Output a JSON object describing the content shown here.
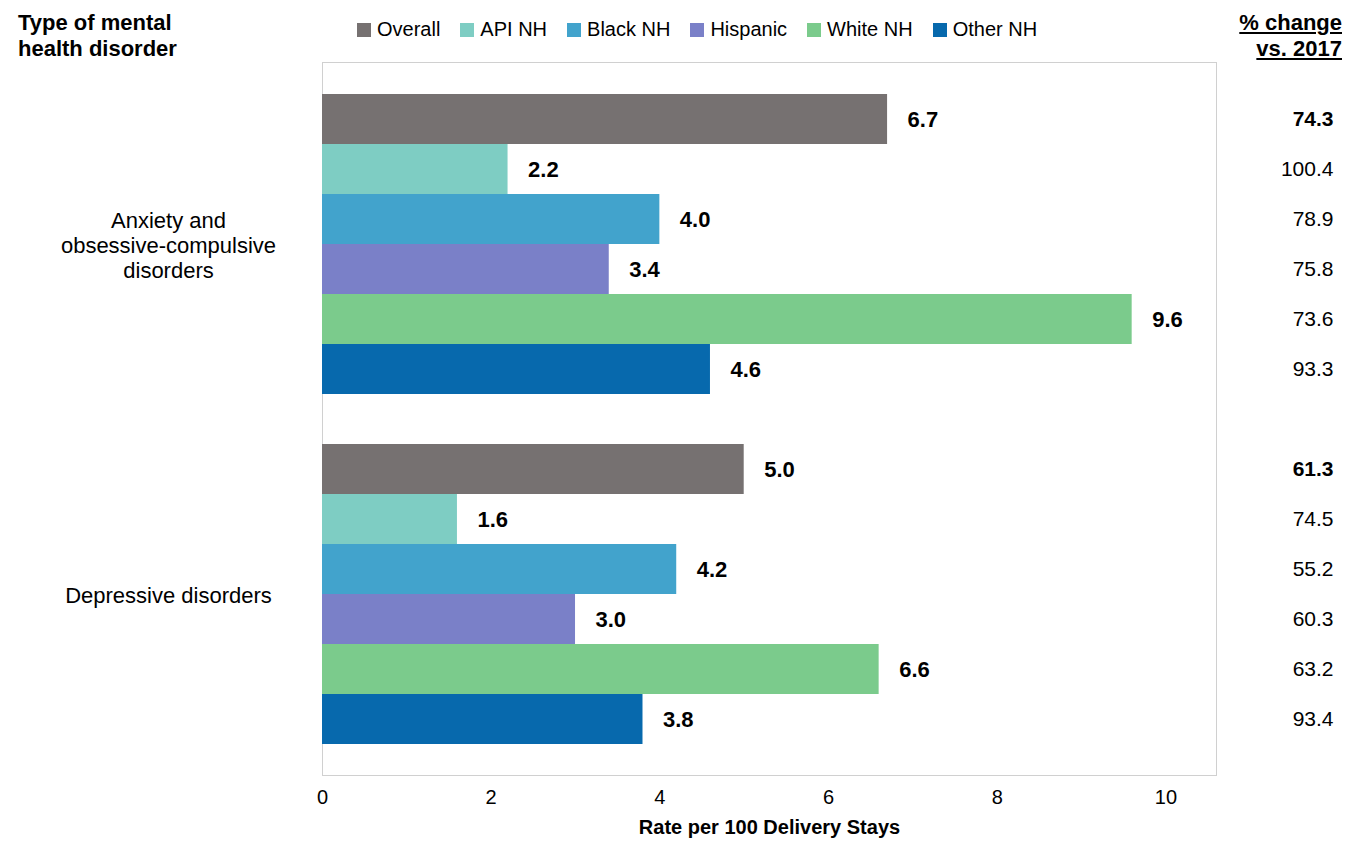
{
  "chart_data": {
    "type": "bar",
    "orientation": "horizontal",
    "data_labels": true,
    "legend": "top",
    "ylabel": "Type of mental health disorder",
    "xlabel": "Rate per 100 Delivery Stays",
    "change_label": "% change vs. 2017",
    "categories": [
      "Anxiety and obsessive-compulsive disorders",
      "Depressive disorders"
    ],
    "xlim": [
      0,
      10.6
    ],
    "xticks": [
      0,
      2,
      4,
      6,
      8,
      10
    ],
    "series": [
      {
        "name": "Overall",
        "color": "#767171",
        "values": [
          6.7,
          5.0
        ],
        "value_labels": [
          "6.7",
          "5.0"
        ],
        "change": [
          74.3,
          61.3
        ]
      },
      {
        "name": "API NH",
        "color": "#7ecdc3",
        "values": [
          2.2,
          1.6
        ],
        "value_labels": [
          "2.2",
          "1.6"
        ],
        "change": [
          100.4,
          74.5
        ]
      },
      {
        "name": "Black NH",
        "color": "#42a3cc",
        "values": [
          4.0,
          4.2
        ],
        "value_labels": [
          "4.0",
          "4.2"
        ],
        "change": [
          78.9,
          55.2
        ]
      },
      {
        "name": "Hispanic",
        "color": "#7a80c8",
        "values": [
          3.4,
          3.0
        ],
        "value_labels": [
          "3.4",
          "3.0"
        ],
        "change": [
          75.8,
          60.3
        ]
      },
      {
        "name": "White NH",
        "color": "#7bcb8c",
        "values": [
          9.6,
          6.6
        ],
        "value_labels": [
          "9.6",
          "6.6"
        ],
        "change": [
          73.6,
          63.2
        ]
      },
      {
        "name": "Other NH",
        "color": "#0769ad",
        "values": [
          4.6,
          3.8
        ],
        "value_labels": [
          "4.6",
          "3.8"
        ],
        "change": [
          93.3,
          93.4
        ]
      }
    ]
  }
}
